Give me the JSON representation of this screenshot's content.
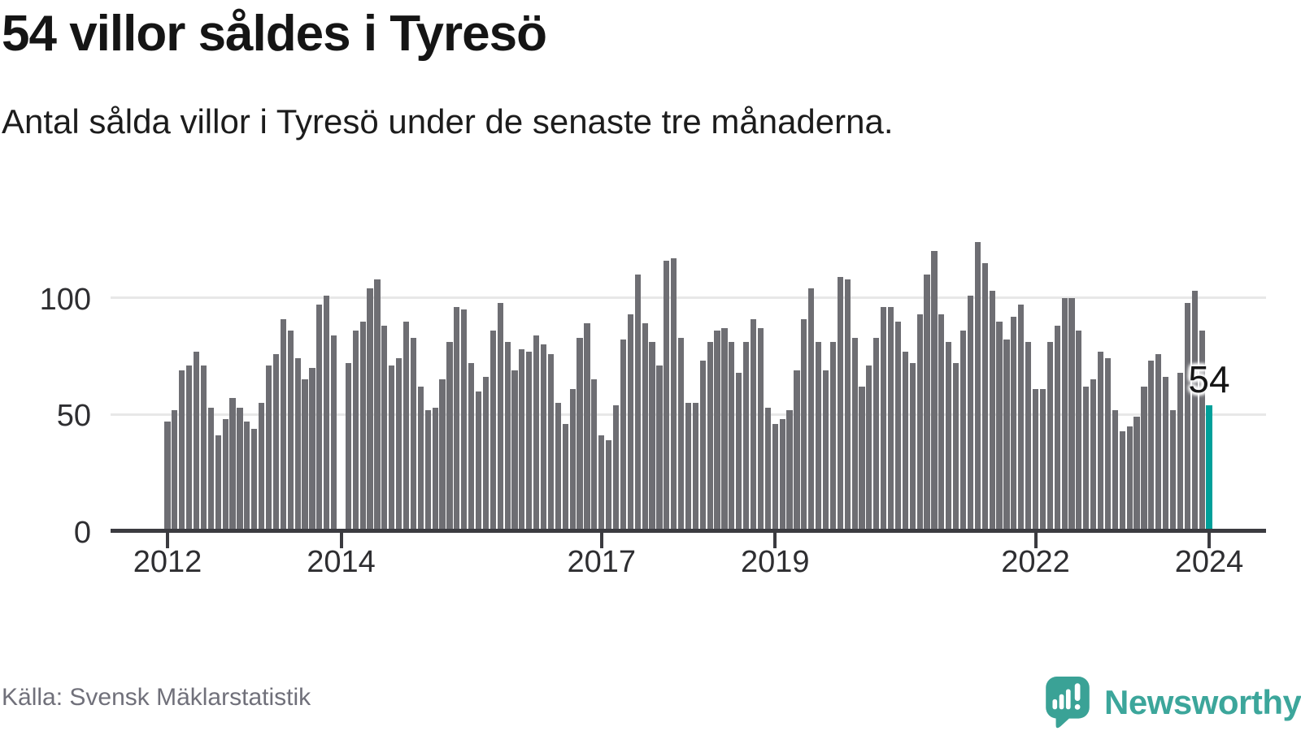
{
  "header": {
    "title": "54 villor såldes i Tyresö",
    "subtitle": "Antal sålda villor i Tyresö under de senaste tre månaderna."
  },
  "annotation": {
    "label": "54"
  },
  "footer": {
    "source": "Källa: Svensk Mäklarstatistik",
    "brand": "Newsworthy"
  },
  "colors": {
    "bar": "#6e6e73",
    "accent": "#00a09a",
    "grid": "#e8e8e8",
    "axis": "#3b3b40",
    "logo_teal": "#3aa296"
  },
  "chart_data": {
    "type": "bar",
    "title": "54 villor såldes i Tyresö",
    "subtitle": "Antal sålda villor i Tyresö under de senaste tre månaderna.",
    "x_months_start": "2012-01",
    "x_months_end": "2024-01",
    "missing_months": [
      "2014-01"
    ],
    "x_tick_years": [
      2012,
      2014,
      2017,
      2019,
      2022,
      2024
    ],
    "y_ticks": [
      0,
      50,
      100
    ],
    "ylim": [
      0,
      130
    ],
    "grid": "horizontal",
    "highlight_last_value": 54,
    "values": [
      47,
      52,
      69,
      71,
      77,
      71,
      53,
      41,
      48,
      57,
      53,
      47,
      44,
      55,
      71,
      76,
      91,
      86,
      74,
      65,
      70,
      97,
      101,
      84,
      null,
      72,
      86,
      90,
      104,
      108,
      88,
      71,
      74,
      90,
      83,
      62,
      52,
      53,
      65,
      81,
      96,
      95,
      72,
      60,
      66,
      86,
      98,
      81,
      69,
      78,
      77,
      84,
      80,
      76,
      55,
      46,
      61,
      83,
      89,
      65,
      41,
      39,
      54,
      82,
      93,
      110,
      89,
      81,
      71,
      116,
      117,
      83,
      55,
      55,
      73,
      81,
      86,
      87,
      81,
      68,
      81,
      91,
      87,
      53,
      46,
      48,
      52,
      69,
      91,
      104,
      81,
      69,
      81,
      109,
      108,
      83,
      62,
      71,
      83,
      96,
      96,
      90,
      77,
      72,
      93,
      110,
      120,
      93,
      81,
      72,
      86,
      101,
      124,
      115,
      103,
      90,
      82,
      92,
      97,
      81,
      61,
      61,
      81,
      88,
      100,
      100,
      86,
      62,
      65,
      77,
      74,
      52,
      43,
      45,
      49,
      62,
      73,
      76,
      66,
      52,
      68,
      98,
      103,
      86,
      54
    ]
  }
}
